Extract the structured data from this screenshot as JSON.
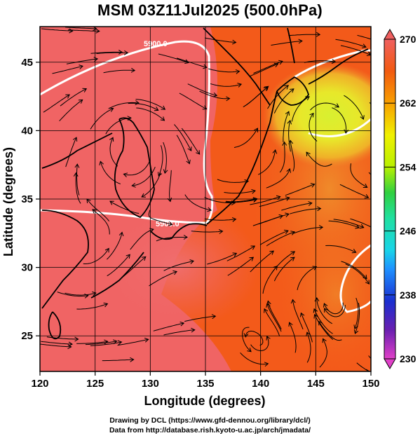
{
  "title": "MSM 03Z11Jul2025 (500.0hPa)",
  "x_axis": {
    "label": "Longitude (degrees)",
    "ticks": [
      "120",
      "125",
      "130",
      "135",
      "140",
      "145",
      "150"
    ],
    "range": [
      120,
      150
    ]
  },
  "y_axis": {
    "label": "Latitude  (degrees)",
    "ticks": [
      "25",
      "30",
      "35",
      "40",
      "45"
    ],
    "range": [
      22.4,
      47.6
    ]
  },
  "colorbar": {
    "ticks": [
      "270",
      "262",
      "254",
      "246",
      "238",
      "230"
    ],
    "range": [
      230,
      270
    ],
    "colors": [
      "#e040c8",
      "#6a1fb0",
      "#1a2fd0",
      "#1e90ff",
      "#19d4e8",
      "#20e0a0",
      "#30d040",
      "#b8f000",
      "#f0f000",
      "#f8a000",
      "#f25a10",
      "#f06060"
    ]
  },
  "contours": [
    {
      "label": "5900.0",
      "color": "#ffffff"
    }
  ],
  "field_colors": {
    "warm_core": "#f06464",
    "mid": "#f35a1a",
    "orange": "#f0822a",
    "yellow": "#e8e82a",
    "yellow_green": "#c8ee30"
  },
  "credits": {
    "line1": "Drawing by DCL (https://www.gfd-dennou.org/library/dcl/)",
    "line2": "Data from http://database.rish.kyoto-u.ac.jp/arch/jmadata/"
  }
}
